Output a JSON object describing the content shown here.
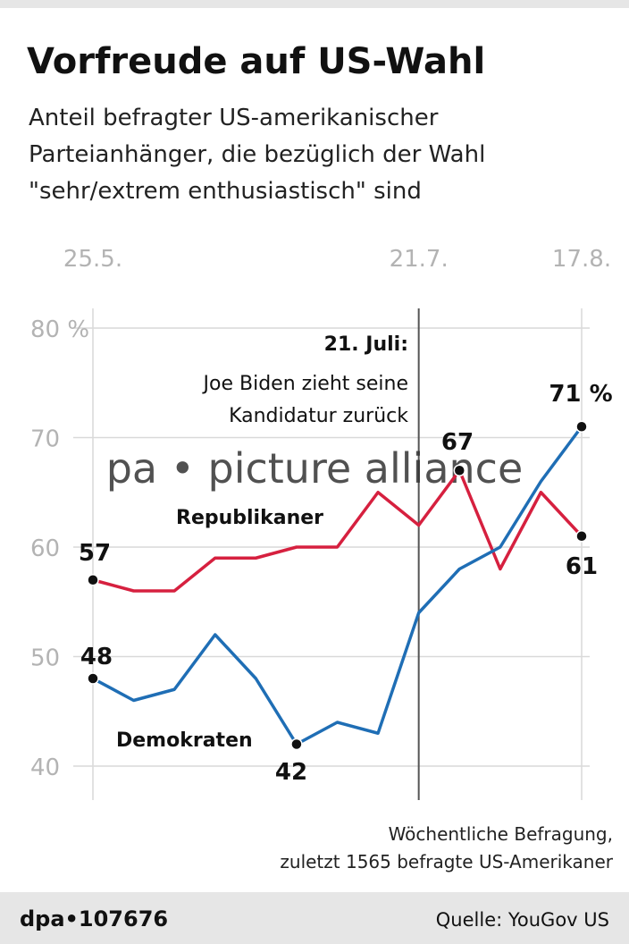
{
  "chart_data": {
    "type": "line",
    "title": "Vorfreude auf US-Wahl",
    "subtitle": [
      "Anteil befragter US-amerikanischer",
      "Parteianhänger, die bezüglich der Wahl",
      "\"sehr/extrem enthusiastisch\" sind"
    ],
    "categories": [
      "25.5.",
      null,
      null,
      null,
      null,
      null,
      null,
      null,
      "21.7.",
      null,
      null,
      null,
      "17.8."
    ],
    "series": [
      {
        "name": "Republikaner",
        "color": "#d6203f",
        "values": [
          57,
          56,
          56,
          59,
          59,
          60,
          60,
          65,
          62,
          67,
          58,
          65,
          61
        ],
        "value_labels": [
          "57",
          null,
          null,
          null,
          null,
          null,
          null,
          null,
          null,
          "67",
          null,
          null,
          "61"
        ]
      },
      {
        "name": "Demokraten",
        "color": "#1f6eb5",
        "values": [
          48,
          46,
          47,
          52,
          48,
          42,
          44,
          43,
          54,
          58,
          60,
          66,
          71
        ],
        "value_labels": [
          "48",
          null,
          null,
          null,
          null,
          "42",
          null,
          null,
          null,
          null,
          null,
          null,
          "71 %"
        ]
      }
    ],
    "ylim": [
      40,
      80
    ],
    "yticks": [
      40,
      50,
      60,
      70,
      {
        "value": 80,
        "label": "80 %"
      }
    ],
    "grid": true,
    "annotation": [
      "21. Juli:",
      "Joe Biden zieht seine",
      "Kandidatur zurück"
    ],
    "note": [
      "Wöchentliche Befragung,",
      "zuletzt 1565 befragte US-Amerikaner"
    ],
    "watermark": "pa • picture alliance",
    "footer": {
      "id": "dpa•107676",
      "source": "Quelle: YouGov US"
    }
  }
}
